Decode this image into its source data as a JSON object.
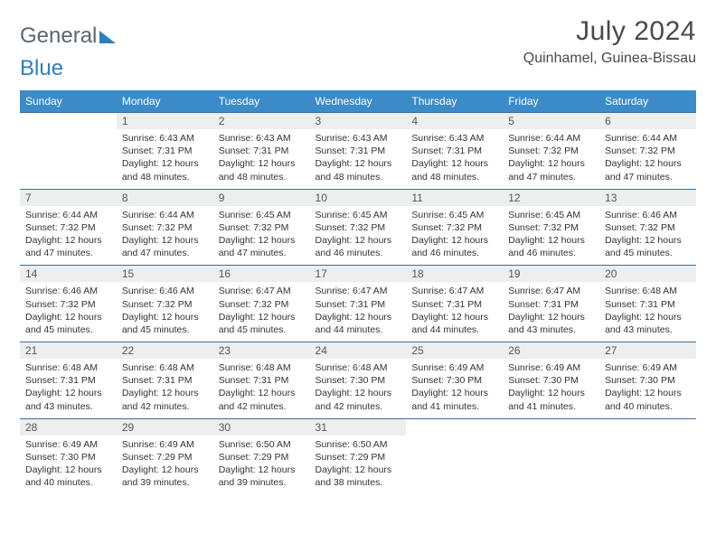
{
  "brand": {
    "part1": "General",
    "part2": "Blue"
  },
  "title": "July 2024",
  "location": "Quinhamel, Guinea-Bissau",
  "colors": {
    "header_bg": "#3b8bc9",
    "header_text": "#ffffff",
    "daynum_bg": "#eceeef",
    "border": "#3b6f9e",
    "brand_gray": "#5c6670",
    "brand_blue": "#2f7fbf",
    "body_text": "#333333",
    "page_bg": "#ffffff"
  },
  "typography": {
    "title_fontsize": 30,
    "location_fontsize": 16,
    "weekday_fontsize": 12,
    "daynum_fontsize": 12,
    "cell_fontsize": 10.5
  },
  "layout": {
    "columns": 7,
    "rows": 5,
    "first_weekday": "Sunday"
  },
  "weekdays": [
    "Sunday",
    "Monday",
    "Tuesday",
    "Wednesday",
    "Thursday",
    "Friday",
    "Saturday"
  ],
  "weeks": [
    {
      "nums": [
        "",
        "1",
        "2",
        "3",
        "4",
        "5",
        "6"
      ],
      "cells": [
        null,
        {
          "sunrise": "6:43 AM",
          "sunset": "7:31 PM",
          "daylight": "12 hours and 48 minutes."
        },
        {
          "sunrise": "6:43 AM",
          "sunset": "7:31 PM",
          "daylight": "12 hours and 48 minutes."
        },
        {
          "sunrise": "6:43 AM",
          "sunset": "7:31 PM",
          "daylight": "12 hours and 48 minutes."
        },
        {
          "sunrise": "6:43 AM",
          "sunset": "7:31 PM",
          "daylight": "12 hours and 48 minutes."
        },
        {
          "sunrise": "6:44 AM",
          "sunset": "7:32 PM",
          "daylight": "12 hours and 47 minutes."
        },
        {
          "sunrise": "6:44 AM",
          "sunset": "7:32 PM",
          "daylight": "12 hours and 47 minutes."
        }
      ]
    },
    {
      "nums": [
        "7",
        "8",
        "9",
        "10",
        "11",
        "12",
        "13"
      ],
      "cells": [
        {
          "sunrise": "6:44 AM",
          "sunset": "7:32 PM",
          "daylight": "12 hours and 47 minutes."
        },
        {
          "sunrise": "6:44 AM",
          "sunset": "7:32 PM",
          "daylight": "12 hours and 47 minutes."
        },
        {
          "sunrise": "6:45 AM",
          "sunset": "7:32 PM",
          "daylight": "12 hours and 47 minutes."
        },
        {
          "sunrise": "6:45 AM",
          "sunset": "7:32 PM",
          "daylight": "12 hours and 46 minutes."
        },
        {
          "sunrise": "6:45 AM",
          "sunset": "7:32 PM",
          "daylight": "12 hours and 46 minutes."
        },
        {
          "sunrise": "6:45 AM",
          "sunset": "7:32 PM",
          "daylight": "12 hours and 46 minutes."
        },
        {
          "sunrise": "6:46 AM",
          "sunset": "7:32 PM",
          "daylight": "12 hours and 45 minutes."
        }
      ]
    },
    {
      "nums": [
        "14",
        "15",
        "16",
        "17",
        "18",
        "19",
        "20"
      ],
      "cells": [
        {
          "sunrise": "6:46 AM",
          "sunset": "7:32 PM",
          "daylight": "12 hours and 45 minutes."
        },
        {
          "sunrise": "6:46 AM",
          "sunset": "7:32 PM",
          "daylight": "12 hours and 45 minutes."
        },
        {
          "sunrise": "6:47 AM",
          "sunset": "7:32 PM",
          "daylight": "12 hours and 45 minutes."
        },
        {
          "sunrise": "6:47 AM",
          "sunset": "7:31 PM",
          "daylight": "12 hours and 44 minutes."
        },
        {
          "sunrise": "6:47 AM",
          "sunset": "7:31 PM",
          "daylight": "12 hours and 44 minutes."
        },
        {
          "sunrise": "6:47 AM",
          "sunset": "7:31 PM",
          "daylight": "12 hours and 43 minutes."
        },
        {
          "sunrise": "6:48 AM",
          "sunset": "7:31 PM",
          "daylight": "12 hours and 43 minutes."
        }
      ]
    },
    {
      "nums": [
        "21",
        "22",
        "23",
        "24",
        "25",
        "26",
        "27"
      ],
      "cells": [
        {
          "sunrise": "6:48 AM",
          "sunset": "7:31 PM",
          "daylight": "12 hours and 43 minutes."
        },
        {
          "sunrise": "6:48 AM",
          "sunset": "7:31 PM",
          "daylight": "12 hours and 42 minutes."
        },
        {
          "sunrise": "6:48 AM",
          "sunset": "7:31 PM",
          "daylight": "12 hours and 42 minutes."
        },
        {
          "sunrise": "6:48 AM",
          "sunset": "7:30 PM",
          "daylight": "12 hours and 42 minutes."
        },
        {
          "sunrise": "6:49 AM",
          "sunset": "7:30 PM",
          "daylight": "12 hours and 41 minutes."
        },
        {
          "sunrise": "6:49 AM",
          "sunset": "7:30 PM",
          "daylight": "12 hours and 41 minutes."
        },
        {
          "sunrise": "6:49 AM",
          "sunset": "7:30 PM",
          "daylight": "12 hours and 40 minutes."
        }
      ]
    },
    {
      "nums": [
        "28",
        "29",
        "30",
        "31",
        "",
        "",
        ""
      ],
      "cells": [
        {
          "sunrise": "6:49 AM",
          "sunset": "7:30 PM",
          "daylight": "12 hours and 40 minutes."
        },
        {
          "sunrise": "6:49 AM",
          "sunset": "7:29 PM",
          "daylight": "12 hours and 39 minutes."
        },
        {
          "sunrise": "6:50 AM",
          "sunset": "7:29 PM",
          "daylight": "12 hours and 39 minutes."
        },
        {
          "sunrise": "6:50 AM",
          "sunset": "7:29 PM",
          "daylight": "12 hours and 38 minutes."
        },
        null,
        null,
        null
      ]
    }
  ],
  "labels": {
    "sunrise": "Sunrise:",
    "sunset": "Sunset:",
    "daylight": "Daylight:"
  }
}
